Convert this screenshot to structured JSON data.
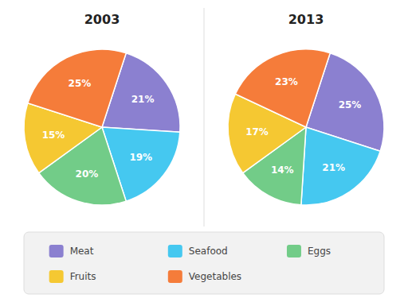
{
  "chart_data": [
    {
      "type": "pie",
      "title": "2003",
      "categories": [
        "Meat",
        "Seafood",
        "Eggs",
        "Fruits",
        "Vegetables"
      ],
      "values": [
        21,
        19,
        20,
        15,
        25
      ],
      "value_labels": [
        "21%",
        "19%",
        "20%",
        "15%",
        "25%"
      ],
      "colors": [
        "#8B80D0",
        "#45C8F0",
        "#72CC88",
        "#F5C832",
        "#F57C3A"
      ],
      "data_labels": true,
      "legend": "bottom"
    },
    {
      "type": "pie",
      "title": "2013",
      "categories": [
        "Meat",
        "Seafood",
        "Eggs",
        "Fruits",
        "Vegetables"
      ],
      "values": [
        25,
        21,
        14,
        17,
        23
      ],
      "value_labels": [
        "25%",
        "21%",
        "14%",
        "17%",
        "23%"
      ],
      "colors": [
        "#8B80D0",
        "#45C8F0",
        "#72CC88",
        "#F5C832",
        "#F57C3A"
      ],
      "data_labels": true
    }
  ]
}
